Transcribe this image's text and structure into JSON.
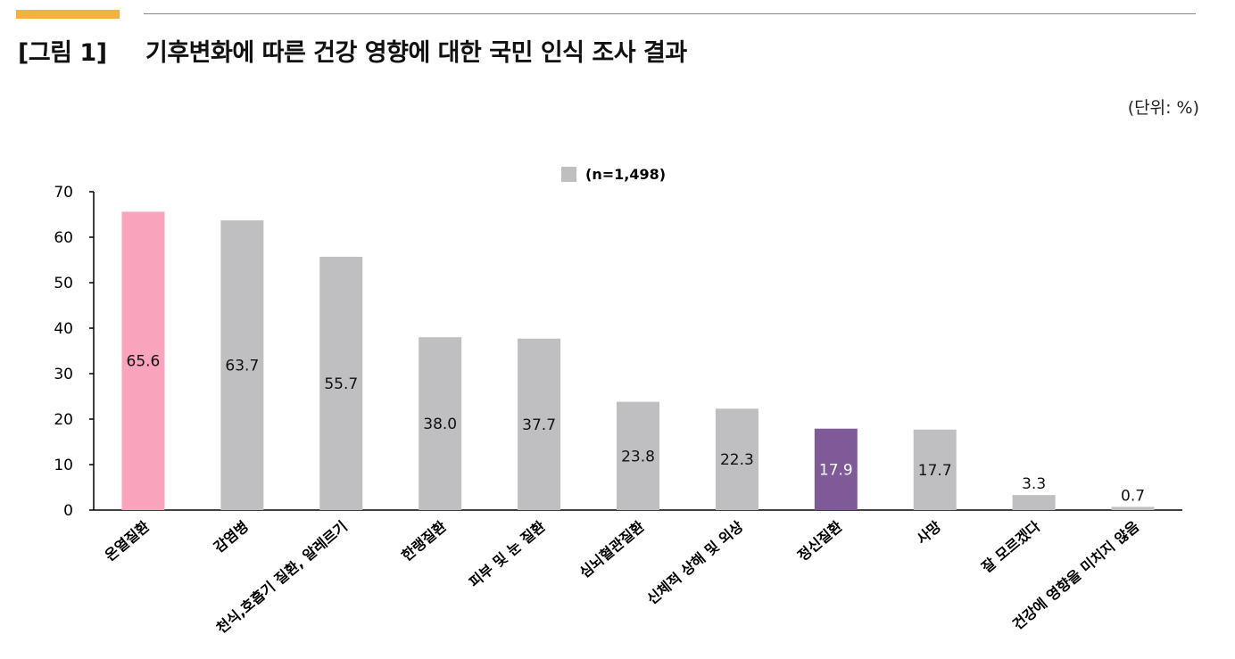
{
  "figure": {
    "label": "[그림 1]",
    "title": "기후변화에 따른 건강 영향에 대한 국민 인식 조사 결과",
    "unit": "(단위: %)"
  },
  "colors": {
    "accent": "#f3b13f",
    "bar_default": "#bfbfc1",
    "bar_highlight_pink": "#f9a3bd",
    "bar_highlight_purple": "#7f5a98",
    "axis": "#000000"
  },
  "chart_data": {
    "type": "bar",
    "title": "",
    "xlabel": "",
    "ylabel": "",
    "ylim": [
      0,
      70
    ],
    "yticks": [
      0,
      10,
      20,
      30,
      40,
      50,
      60,
      70
    ],
    "grid": false,
    "legend": {
      "entries": [
        "(n=1,498)"
      ],
      "placement": "top-center"
    },
    "categories": [
      "온열질환",
      "감염병",
      "천식,호흡기 질환, 알레르기",
      "한랭질환",
      "피부 및 눈 질환",
      "심뇌혈관질환",
      "신체적 상해 및 외상",
      "정신질환",
      "사망",
      "잘 모르겠다",
      "건강에 영향을 미치지 않음"
    ],
    "series": [
      {
        "name": "(n=1,498)",
        "values": [
          65.6,
          63.7,
          55.7,
          38.0,
          37.7,
          23.8,
          22.3,
          17.9,
          17.7,
          3.3,
          0.7
        ],
        "labels": [
          "65.6",
          "63.7",
          "55.7",
          "38.0",
          "37.7",
          "23.8",
          "22.3",
          "17.9",
          "17.7",
          "3.3",
          "0.7"
        ]
      }
    ],
    "highlights": {
      "0": "#f9a3bd",
      "7": "#7f5a98"
    }
  }
}
